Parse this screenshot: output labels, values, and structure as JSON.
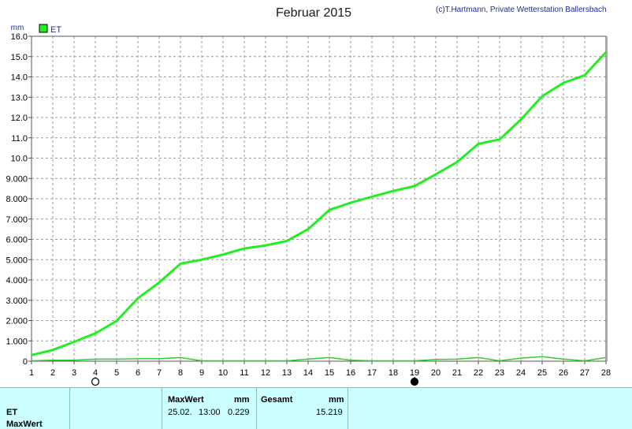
{
  "header": {
    "title": "Februar 2015",
    "credit": "(c)T.Hartmann, Private Wetterstation Ballersbach"
  },
  "chart_data": {
    "type": "line",
    "x": [
      1,
      2,
      3,
      4,
      5,
      6,
      7,
      8,
      9,
      10,
      11,
      12,
      13,
      14,
      15,
      16,
      17,
      18,
      19,
      20,
      21,
      22,
      23,
      24,
      25,
      26,
      27,
      28
    ],
    "xlim": [
      1,
      28
    ],
    "ylim": [
      0,
      16
    ],
    "ylabel": "mm",
    "ytick_labels": [
      "0",
      "1.000",
      "2.000",
      "3.000",
      "4.000",
      "5.000",
      "6.000",
      "7.000",
      "8.000",
      "9.000",
      "10.0",
      "11.0",
      "12.0",
      "13.0",
      "14.0",
      "15.0",
      "16.0"
    ],
    "grid": true,
    "legend_position": "top-left",
    "series": [
      {
        "name": "ET",
        "color": "#22ee22",
        "values": [
          0.3,
          0.55,
          0.95,
          1.37,
          1.98,
          3.1,
          3.87,
          4.8,
          5.0,
          5.25,
          5.55,
          5.7,
          5.92,
          6.5,
          7.45,
          7.8,
          8.1,
          8.38,
          8.62,
          9.2,
          9.8,
          10.7,
          10.92,
          11.9,
          13.05,
          13.7,
          14.08,
          15.22
        ]
      },
      {
        "name": "",
        "color": "#33cc33",
        "values": [
          0.02,
          0.05,
          0.05,
          0.1,
          0.1,
          0.12,
          0.12,
          0.18,
          0.02,
          0.02,
          0.02,
          0.02,
          0.02,
          0.1,
          0.18,
          0.05,
          0.02,
          0.02,
          0.02,
          0.08,
          0.1,
          0.18,
          0.02,
          0.15,
          0.22,
          0.1,
          0.02,
          0.18
        ]
      }
    ],
    "moon_markers": [
      {
        "day": 4,
        "icon": "full-moon-icon"
      },
      {
        "day": 19,
        "icon": "new-moon-icon"
      }
    ]
  },
  "footer": {
    "row1_label": "ET",
    "row2_label": "MaxWert",
    "max_header": "MaxWert",
    "max_unit": "mm",
    "max_date": "25.02.",
    "max_time": "13:00",
    "max_value": "0.229",
    "total_header": "Gesamt",
    "total_unit": "mm",
    "total_value": "15.219"
  }
}
